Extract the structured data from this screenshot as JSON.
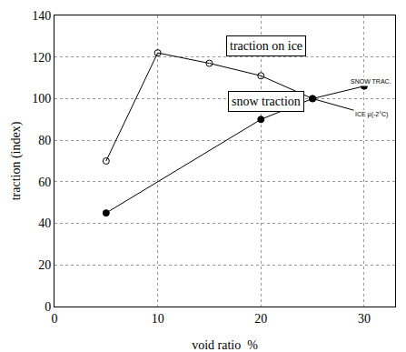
{
  "chart_data": {
    "type": "line",
    "x_label": "void ratio  %",
    "y_label": "traction (index)",
    "series": [
      {
        "name": "traction on ice",
        "color": "#000000",
        "marker": "open_circle",
        "line_style": "solid",
        "x": [
          5,
          10,
          15,
          20,
          25,
          30
        ],
        "values": [
          70,
          122,
          117,
          111,
          100,
          93
        ]
      },
      {
        "name": "snow traction",
        "color": "#000000",
        "marker": "filled_circle",
        "line_style": "solid",
        "x": [
          5,
          20,
          25,
          30
        ],
        "values": [
          45,
          90,
          100,
          106
        ]
      }
    ],
    "annotations": [
      "SNOW TRAC.",
      "ICE μ(-2°C)"
    ],
    "xlim": [
      0,
      33
    ],
    "xticks": [
      0,
      10,
      20,
      30
    ],
    "ylim": [
      0,
      140
    ],
    "yticks": [
      0,
      20,
      40,
      60,
      80,
      100,
      120,
      140
    ],
    "grid": true
  }
}
